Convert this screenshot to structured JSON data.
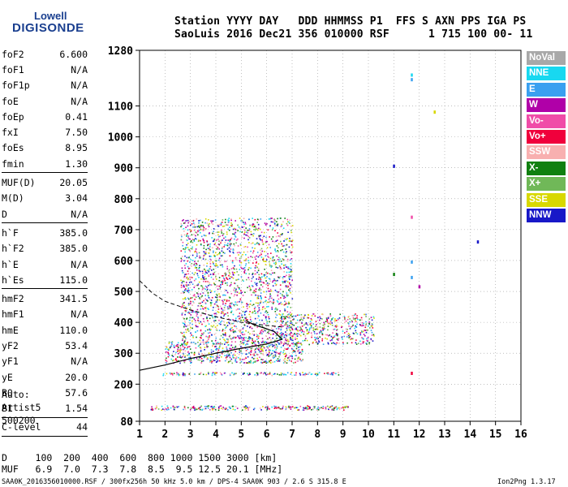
{
  "logo": {
    "line1": "Lowell",
    "line2": "DIGISONDE"
  },
  "header": {
    "line1": "Station YYYY DAY   DDD HHMMSS P1  FFS S AXN PPS IGA PS",
    "line2": "SaoLuis 2016 Dec21 356 010000 RSF      1 715 100 00- 11"
  },
  "params": [
    {
      "label": "foF2",
      "value": "6.600"
    },
    {
      "label": "foF1",
      "value": "N/A"
    },
    {
      "label": "foF1p",
      "value": "N/A"
    },
    {
      "label": "foE",
      "value": "N/A"
    },
    {
      "label": "foEp",
      "value": "0.41"
    },
    {
      "label": "fxI",
      "value": "7.50"
    },
    {
      "label": "foEs",
      "value": "8.95"
    },
    {
      "label": "fmin",
      "value": "1.30"
    },
    {
      "label": "MUF(D)",
      "value": "20.05",
      "divider_before": true
    },
    {
      "label": "M(D)",
      "value": "3.04"
    },
    {
      "label": "D",
      "value": "N/A"
    },
    {
      "label": "h`F",
      "value": "385.0",
      "divider_before": true
    },
    {
      "label": "h`F2",
      "value": "385.0"
    },
    {
      "label": "h`E",
      "value": "N/A"
    },
    {
      "label": "h`Es",
      "value": "115.0"
    },
    {
      "label": "hmF2",
      "value": "341.5",
      "divider_before": true
    },
    {
      "label": "hmF1",
      "value": "N/A"
    },
    {
      "label": "hmE",
      "value": "110.0"
    },
    {
      "label": "yF2",
      "value": "53.4"
    },
    {
      "label": "yF1",
      "value": "N/A"
    },
    {
      "label": "yE",
      "value": "20.0"
    },
    {
      "label": "B0",
      "value": "57.6"
    },
    {
      "label": "B1",
      "value": "1.54"
    },
    {
      "label": "C-level",
      "value": "44",
      "divider_before": true,
      "divider_after": true
    }
  ],
  "auto": {
    "line1": "Auto:",
    "line2": "Artist5",
    "line3": "500200"
  },
  "legend": [
    {
      "label": "NoVal",
      "color": "#a8a8a8"
    },
    {
      "label": "NNE",
      "color": "#18d8f0"
    },
    {
      "label": "E",
      "color": "#3aa0f0"
    },
    {
      "label": "W",
      "color": "#b000a8"
    },
    {
      "label": "Vo-",
      "color": "#f04ca8"
    },
    {
      "label": "Vo+",
      "color": "#f0003c"
    },
    {
      "label": "SSW",
      "color": "#f8b0b0"
    },
    {
      "label": "X-",
      "color": "#108010"
    },
    {
      "label": "X+",
      "color": "#70b858"
    },
    {
      "label": "SSE",
      "color": "#d8d800"
    },
    {
      "label": "NNW",
      "color": "#1818c8"
    }
  ],
  "footer": {
    "d_row": "D     100  200  400  600  800 1000 1500 3000 [km]",
    "muf_row": "MUF   6.9  7.0  7.3  7.8  8.5  9.5 12.5 20.1 [MHz]",
    "filename": "SAA0K_2016356010000.RSF / 300fx256h 50 kHz 5.0 km / DPS-4 SAA0K 903 / 2.6 S 315.8 E",
    "version": "Ion2Png 1.3.17"
  },
  "chart_data": {
    "type": "scatter",
    "xlim": [
      1,
      16
    ],
    "ylim": [
      80,
      1280
    ],
    "x_ticks": [
      1,
      2,
      3,
      4,
      5,
      6,
      7,
      8,
      9,
      10,
      11,
      12,
      13,
      14,
      15,
      16
    ],
    "y_ticks": [
      80,
      200,
      300,
      400,
      500,
      600,
      700,
      800,
      900,
      1000,
      1100,
      1280
    ],
    "grid": true,
    "trace_solid": [
      [
        1.0,
        245
      ],
      [
        2.0,
        262
      ],
      [
        3.0,
        283
      ],
      [
        4.0,
        300
      ],
      [
        5.0,
        316
      ],
      [
        6.0,
        330
      ],
      [
        6.6,
        345
      ],
      [
        6.3,
        370
      ],
      [
        5.9,
        382
      ],
      [
        5.5,
        392
      ],
      [
        5.2,
        405
      ]
    ],
    "trace_dashed": [
      [
        1.0,
        535
      ],
      [
        1.5,
        495
      ],
      [
        2.0,
        468
      ],
      [
        3.0,
        440
      ],
      [
        4.0,
        418
      ],
      [
        5.0,
        400
      ],
      [
        6.0,
        390
      ],
      [
        6.6,
        385
      ]
    ],
    "echo_bands": [
      {
        "f0": 1.4,
        "f1": 9.2,
        "h0": 118,
        "h1": 132,
        "density": 0.55
      },
      {
        "f0": 1.9,
        "f1": 9.0,
        "h0": 230,
        "h1": 240,
        "density": 0.45
      },
      {
        "f0": 2.0,
        "f1": 7.4,
        "h0": 270,
        "h1": 340,
        "density": 0.4
      },
      {
        "f0": 2.6,
        "f1": 7.0,
        "h0": 340,
        "h1": 740,
        "density": 0.25
      },
      {
        "f0": 6.5,
        "f1": 10.2,
        "h0": 330,
        "h1": 430,
        "density": 0.3
      }
    ],
    "isolated_points": [
      {
        "f": 11.7,
        "h": 1200,
        "color": "#18d8f0"
      },
      {
        "f": 11.7,
        "h": 1185,
        "color": "#3aa0f0"
      },
      {
        "f": 12.6,
        "h": 1080,
        "color": "#d8d800"
      },
      {
        "f": 11.0,
        "h": 905,
        "color": "#1818c8"
      },
      {
        "f": 14.3,
        "h": 660,
        "color": "#1818c8"
      },
      {
        "f": 11.7,
        "h": 595,
        "color": "#3aa0f0"
      },
      {
        "f": 11.0,
        "h": 555,
        "color": "#108010"
      },
      {
        "f": 11.7,
        "h": 545,
        "color": "#3aa0f0"
      },
      {
        "f": 12.0,
        "h": 515,
        "color": "#b000a8"
      },
      {
        "f": 11.7,
        "h": 740,
        "color": "#f04ca8"
      },
      {
        "f": 11.7,
        "h": 235,
        "color": "#f0003c"
      }
    ]
  }
}
